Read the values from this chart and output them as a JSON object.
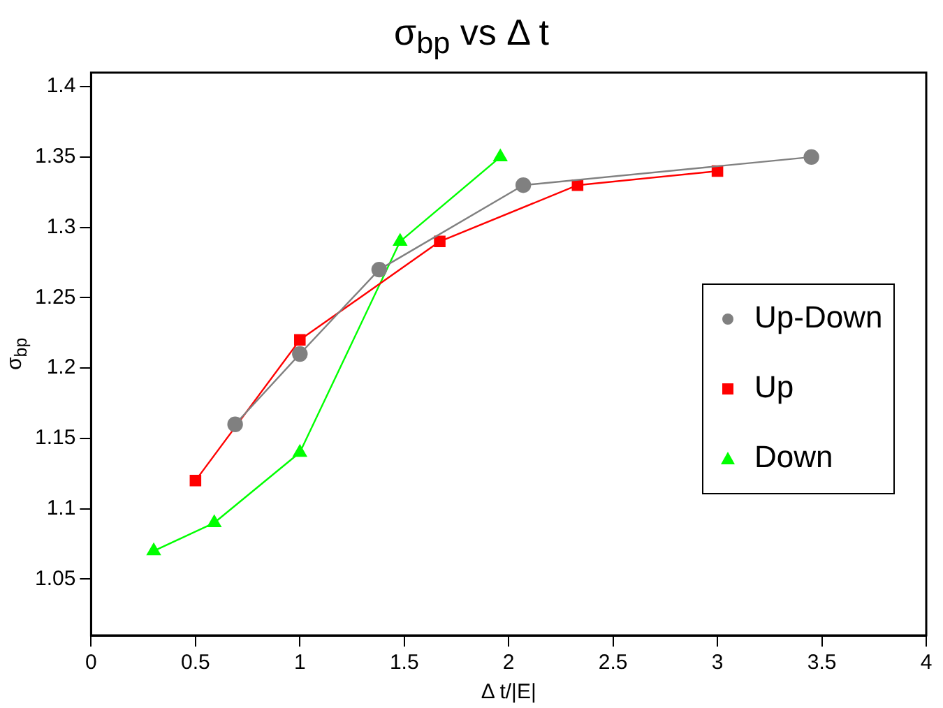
{
  "chart_data": {
    "type": "line",
    "title": "σ$_{bp}$ vs Δ t",
    "xlabel": "Δ t/|E|",
    "ylabel": "σ$_{bp}$",
    "xlim": [
      0,
      4
    ],
    "xticks": [
      0,
      0.5,
      1,
      1.5,
      2,
      2.5,
      3,
      3.5,
      4
    ],
    "ylim": [
      1.01,
      1.41
    ],
    "yticks": [
      1.05,
      1.1,
      1.15,
      1.2,
      1.25,
      1.3,
      1.35,
      1.4
    ],
    "grid": false,
    "legend": "right",
    "series": [
      {
        "name": "Up-Down",
        "color": "#808080",
        "marker": "circle",
        "x": [
          0.69,
          1.0,
          1.38,
          2.07,
          3.45
        ],
        "values": [
          1.16,
          1.21,
          1.27,
          1.33,
          1.35
        ]
      },
      {
        "name": "Up",
        "color": "#ff0000",
        "marker": "square",
        "x": [
          0.5,
          1.0,
          1.67,
          2.33,
          3.0
        ],
        "values": [
          1.12,
          1.22,
          1.29,
          1.33,
          1.34
        ]
      },
      {
        "name": "Down",
        "color": "#00ff00",
        "marker": "triangle",
        "x": [
          0.3,
          0.59,
          1.0,
          1.48,
          1.96
        ],
        "values": [
          1.07,
          1.09,
          1.14,
          1.29,
          1.35
        ]
      }
    ]
  }
}
